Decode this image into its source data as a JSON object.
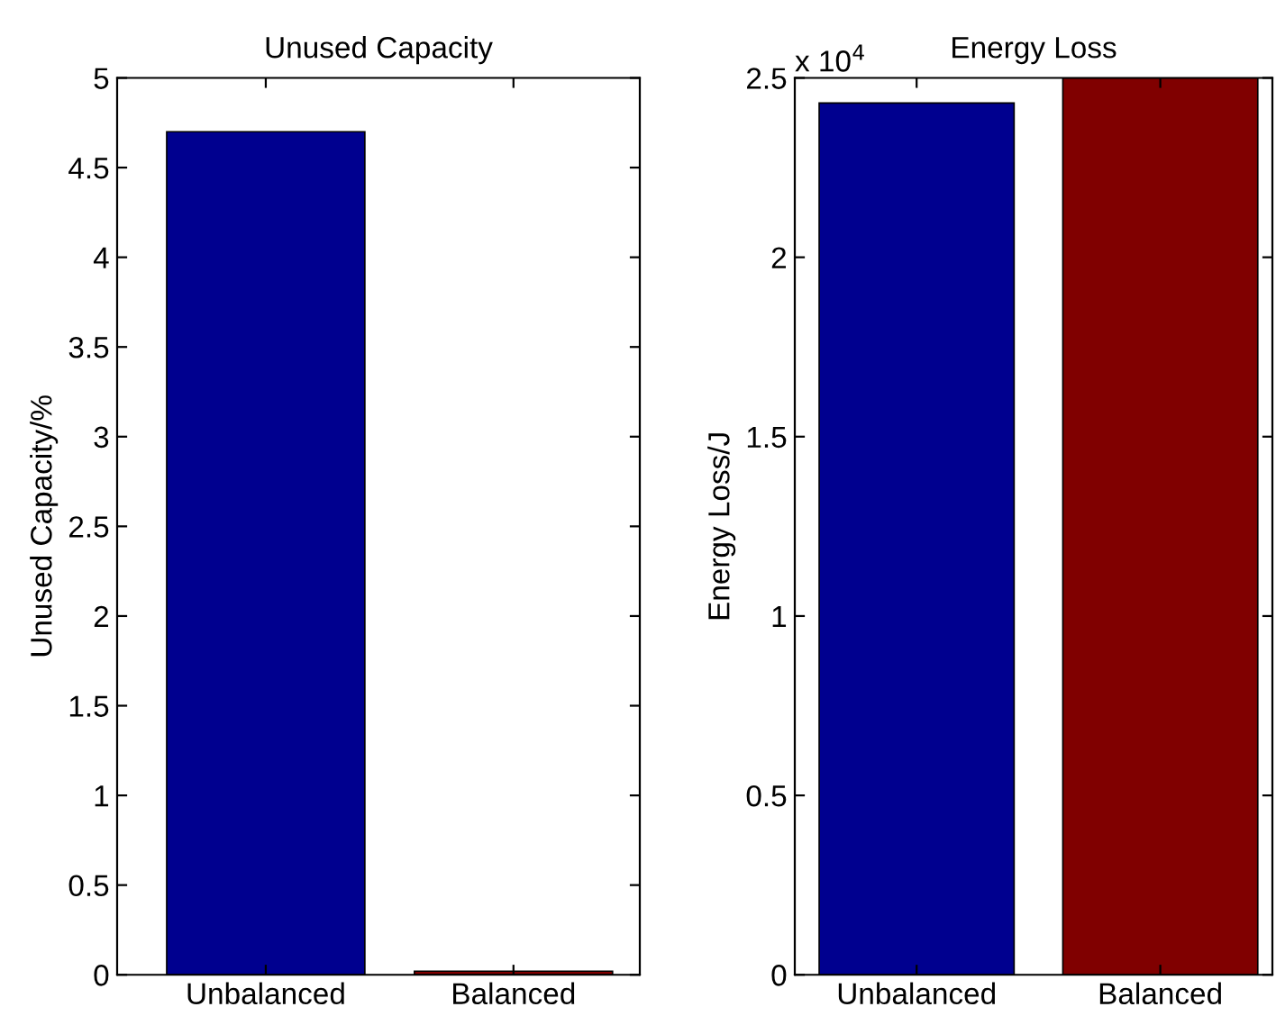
{
  "chart_data": [
    {
      "type": "bar",
      "title": "Unused Capacity",
      "ylabel": "Unused Capacity/%",
      "categories": [
        "Unbalanced",
        "Balanced"
      ],
      "values": [
        4.7,
        0.02
      ],
      "colors": [
        "#00008f",
        "#800000"
      ],
      "ylim": [
        0,
        5
      ],
      "yticks": [
        0,
        0.5,
        1,
        1.5,
        2,
        2.5,
        3,
        3.5,
        4,
        4.5,
        5
      ],
      "grid": false,
      "legend": false
    },
    {
      "type": "bar",
      "title": "Energy Loss",
      "ylabel": "Energy Loss/J",
      "categories": [
        "Unbalanced",
        "Balanced"
      ],
      "values": [
        2.43,
        2.5
      ],
      "colors": [
        "#00008f",
        "#800000"
      ],
      "ylim": [
        0,
        2.5
      ],
      "yticks": [
        0,
        0.5,
        1,
        1.5,
        2,
        2.5
      ],
      "annotations": [
        "x 10$^{4}$"
      ],
      "grid": false,
      "legend": false
    }
  ]
}
